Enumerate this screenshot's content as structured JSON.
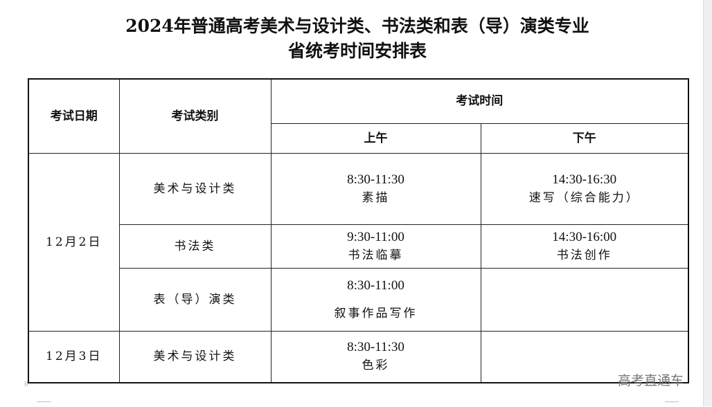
{
  "title": {
    "line1": "2024年普通高考美术与设计类、书法类和表（导）演类专业",
    "line2": "省统考时间安排表"
  },
  "headers": {
    "date": "考试日期",
    "category": "考试类别",
    "time": "考试时间",
    "morning": "上午",
    "afternoon": "下午"
  },
  "rows": [
    {
      "date": "12月2日",
      "category": "美术与设计类",
      "am_time": "8:30-11:30",
      "am_subject": "素描",
      "pm_time": "14:30-16:30",
      "pm_subject": "速写（综合能力）"
    },
    {
      "category": "书法类",
      "am_time": "9:30-11:00",
      "am_subject": "书法临摹",
      "pm_time": "14:30-16:00",
      "pm_subject": "书法创作"
    },
    {
      "category": "表（导）演类",
      "am_time": "8:30-11:00",
      "am_subject": "叙事作品写作",
      "pm_time": "",
      "pm_subject": ""
    },
    {
      "date": "12月3日",
      "category": "美术与设计类",
      "am_time": "8:30-11:30",
      "am_subject": "色彩",
      "pm_time": "",
      "pm_subject": ""
    }
  ],
  "watermark": "高考直通车"
}
